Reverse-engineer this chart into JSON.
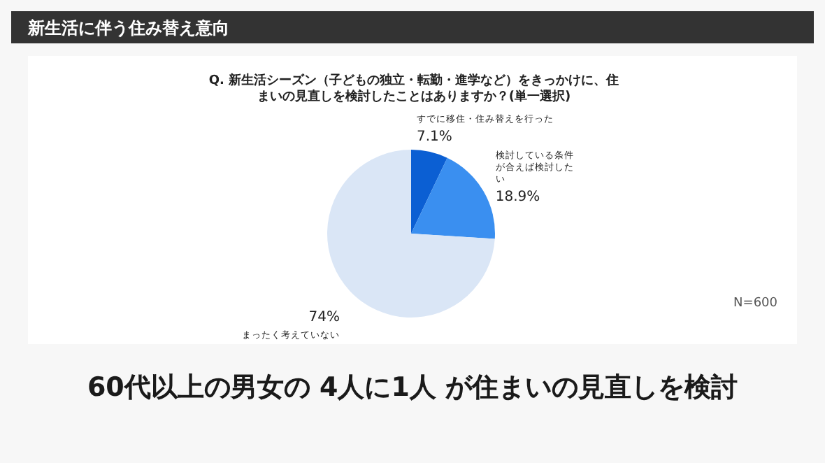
{
  "chart_data": {
    "type": "pie",
    "title": "新生活に伴う住み替え意向",
    "subtitle": "Q. 新生活シーズン（子どもの独立・転勤・進学など）をきっかけに、住まいの見直しを検討したことはありますか？(単一選択)",
    "categories": [
      "すでに移住・住み替えを行った",
      "検討している条件が合えば検討したい",
      "まったく考えていない"
    ],
    "values": [
      7.1,
      18.9,
      74
    ],
    "value_labels": [
      "7.1%",
      "18.9%",
      "74%"
    ],
    "colors": [
      "#0b5fd3",
      "#3a8ff0",
      "#dae6f6"
    ],
    "annotations": [
      "N=600",
      "60代以上の男女の 4人に1人 が住まいの見直しを検討"
    ]
  }
}
